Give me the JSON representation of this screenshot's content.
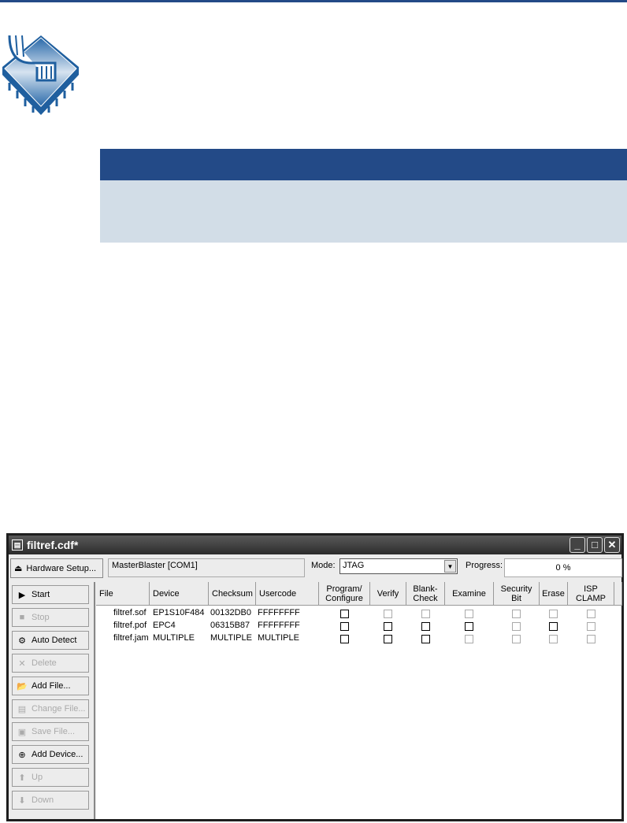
{
  "window": {
    "title": "filtref.cdf*",
    "controls": [
      "minimize",
      "maximize",
      "close"
    ]
  },
  "toolbar": {
    "hardware_setup": "Hardware Setup...",
    "hardware": "MasterBlaster [COM1]",
    "mode_label": "Mode:",
    "mode_value": "JTAG",
    "progress_label": "Progress:",
    "progress_value": "0 %"
  },
  "buttons": [
    {
      "label": "Start",
      "icon": "start-icon",
      "enabled": true
    },
    {
      "label": "Stop",
      "icon": "stop-icon",
      "enabled": false
    },
    {
      "label": "Auto Detect",
      "icon": "auto-detect-icon",
      "enabled": true
    },
    {
      "label": "Delete",
      "icon": "delete-x-icon",
      "enabled": false
    },
    {
      "label": "Add File...",
      "icon": "folder-open-icon",
      "enabled": true
    },
    {
      "label": "Change File...",
      "icon": "change-file-icon",
      "enabled": false
    },
    {
      "label": "Save File...",
      "icon": "save-icon",
      "enabled": false
    },
    {
      "label": "Add Device...",
      "icon": "add-device-icon",
      "enabled": true
    },
    {
      "label": "Up",
      "icon": "up-arrow-icon",
      "enabled": false
    },
    {
      "label": "Down",
      "icon": "down-arrow-icon",
      "enabled": false
    }
  ],
  "columns": [
    "File",
    "Device",
    "Checksum",
    "Usercode",
    "Program/\nConfigure",
    "Verify",
    "Blank-\nCheck",
    "Examine",
    "Security\nBit",
    "Erase",
    "ISP\nCLAMP"
  ],
  "rows": [
    {
      "file": "filtref.sof",
      "device": "EP1S10F484",
      "checksum": "00132DB0",
      "usercode": "FFFFFFFF",
      "enabled": [
        true,
        false,
        false,
        false,
        false,
        false,
        false
      ],
      "checked": [
        false,
        false,
        false,
        false,
        false,
        false,
        false
      ]
    },
    {
      "file": "filtref.pof",
      "device": "EPC4",
      "checksum": "06315B87",
      "usercode": "FFFFFFFF",
      "enabled": [
        true,
        true,
        true,
        true,
        false,
        true,
        false
      ],
      "checked": [
        false,
        false,
        false,
        false,
        false,
        false,
        false
      ]
    },
    {
      "file": "filtref.jam",
      "device": "MULTIPLE",
      "checksum": "MULTIPLE",
      "usercode": "MULTIPLE",
      "enabled": [
        true,
        true,
        true,
        false,
        false,
        false,
        false
      ],
      "checked": [
        false,
        false,
        false,
        false,
        false,
        false,
        false
      ]
    }
  ],
  "colors": {
    "brand_blue": "#234a87",
    "band": "#d2dde7"
  }
}
